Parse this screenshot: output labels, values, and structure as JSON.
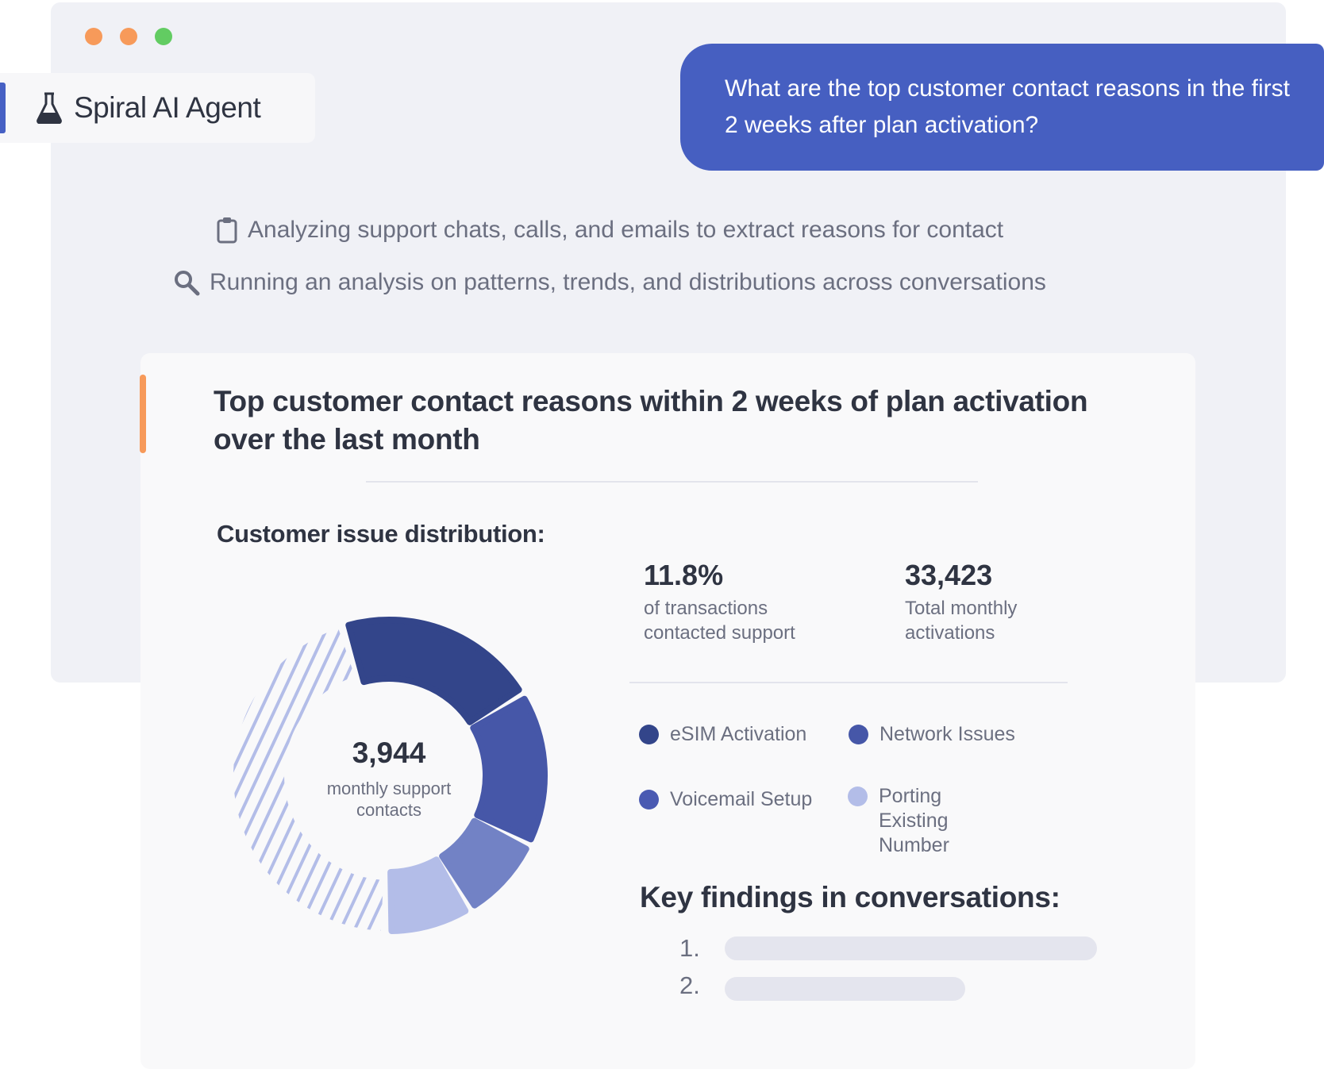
{
  "window": {
    "dot_colors": [
      "#f79a5a",
      "#f79a5a",
      "#62cc62"
    ]
  },
  "agent": {
    "name": "Spiral AI Agent",
    "icon": "flask-icon",
    "accent": "#4660c4"
  },
  "question": {
    "text": "What are the top customer contact reasons in the first 2 weeks after plan activation?",
    "color": "#465fc1"
  },
  "steps": [
    {
      "icon": "clipboard-icon",
      "text": "Analyzing support chats, calls, and emails to extract reasons for contact"
    },
    {
      "icon": "search-icon",
      "text": "Running an analysis on patterns, trends, and distributions across conversations"
    }
  ],
  "card": {
    "title": "Top customer contact reasons within 2 weeks of plan activation over the last month",
    "subtitle": "Customer issue distribution:",
    "stats": [
      {
        "value": "11.8%",
        "label": "of transactions contacted support"
      },
      {
        "value": "33,423",
        "label": "Total monthly activations"
      }
    ],
    "key_findings_title": "Key findings in conversations:",
    "findings": [
      {
        "number": "1."
      },
      {
        "number": "2."
      }
    ]
  },
  "chart_data": {
    "type": "pie",
    "variant": "donut",
    "center_value": "3,944",
    "center_label": "monthly support contacts",
    "legend_placement": "right",
    "series": [
      {
        "name": "eSIM Activation",
        "value": 21,
        "color": "#33458a",
        "legend_color": "#33458a"
      },
      {
        "name": "Network Issues",
        "value": 16,
        "color": "#4657a8",
        "legend_color": "#4657a8"
      },
      {
        "name": "Voicemail Setup",
        "value": 9,
        "color": "#7282c5",
        "legend_color": "#4a5ab2"
      },
      {
        "name": "Porting Existing Number",
        "value": 9,
        "color": "#b3bde8",
        "legend_color": "#b3bde8"
      },
      {
        "value": 45,
        "color": "#b3bde8",
        "pattern": "hatched"
      }
    ]
  }
}
